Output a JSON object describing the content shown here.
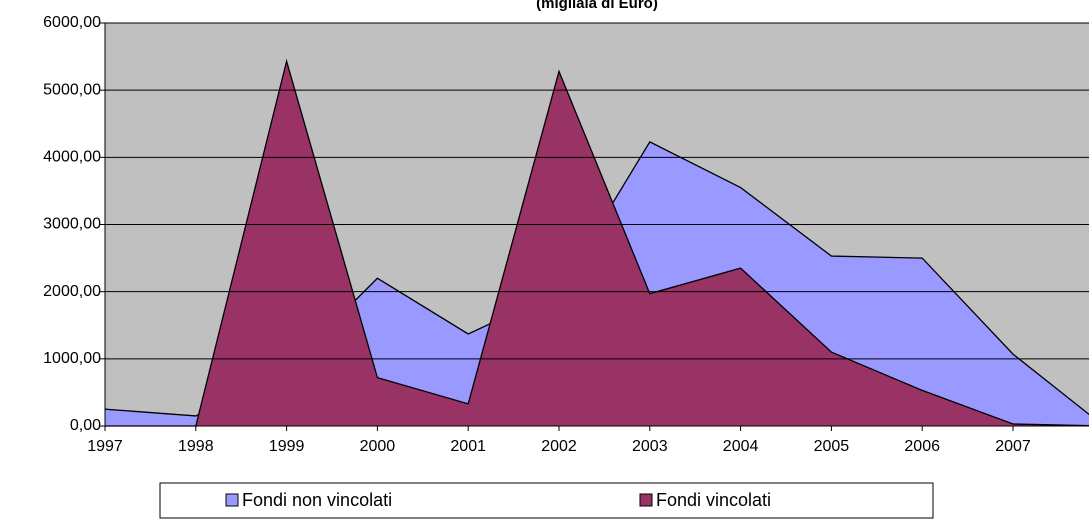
{
  "chart_data": {
    "type": "area",
    "title": "(migliaia di Euro)",
    "categories": [
      "1997",
      "1998",
      "1999",
      "2000",
      "2001",
      "2002",
      "2003",
      "2004",
      "2005",
      "2006",
      "2007",
      null
    ],
    "series": [
      {
        "name": "Fondi non vincolati",
        "color": "#9999ff",
        "values": [
          250,
          150,
          850,
          2200,
          1370,
          2000,
          4230,
          3550,
          2530,
          2500,
          1070,
          0
        ]
      },
      {
        "name": "Fondi vincolati",
        "color": "#993366",
        "values": [
          0,
          0,
          5430,
          720,
          330,
          5280,
          1970,
          2350,
          1100,
          530,
          30,
          0
        ]
      }
    ],
    "ylim": [
      0,
      6000
    ],
    "yticks": [
      {
        "value": 0,
        "label": "0,00"
      },
      {
        "value": 1000,
        "label": "1000,00"
      },
      {
        "value": 2000,
        "label": "2000,00"
      },
      {
        "value": 3000,
        "label": "3000,00"
      },
      {
        "value": 4000,
        "label": "4000,00"
      },
      {
        "value": 5000,
        "label": "5000,00"
      },
      {
        "value": 6000,
        "label": "6000,00"
      }
    ],
    "grid": true,
    "background": "#c0c0c0",
    "legend": "bottom"
  }
}
